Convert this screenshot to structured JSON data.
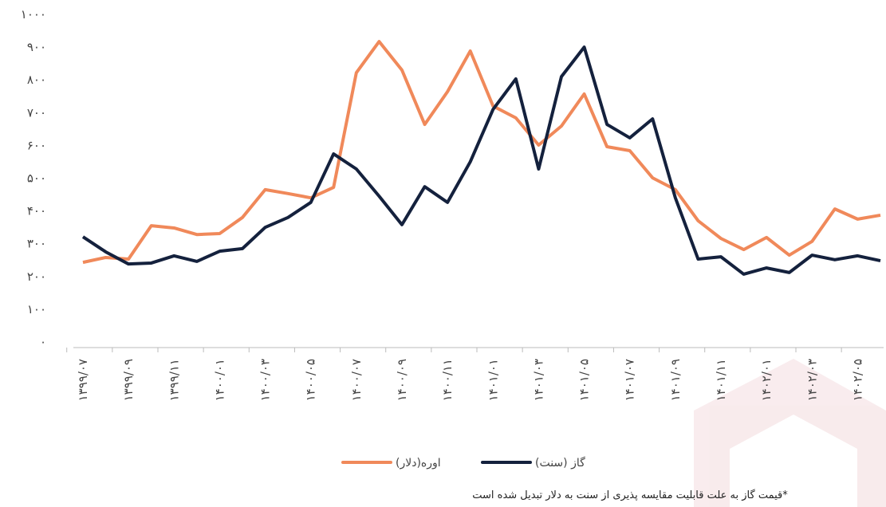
{
  "chart_data": {
    "type": "line",
    "categories": [
      "۱۳۹۹/۰۷",
      null,
      "۱۳۹۹/۰۹",
      null,
      "۱۳۹۹/۱۱",
      null,
      "۱۴۰۰/۰۱",
      null,
      "۱۴۰۰/۰۳",
      null,
      "۱۴۰۰/۰۵",
      null,
      "۱۴۰۰/۰۷",
      null,
      "۱۴۰۰/۰۹",
      null,
      "۱۴۰۰/۱۱",
      null,
      "۱۴۰۱/۰۱",
      null,
      "۱۴۰۱/۰۳",
      null,
      "۱۴۰۱/۰۵",
      null,
      "۱۴۰۱/۰۷",
      null,
      "۱۴۰۱/۰۹",
      null,
      "۱۴۰۱/۱۱",
      null,
      "۱۴۰۲/۰۱",
      null,
      "۱۴۰۲/۰۳",
      null,
      "۱۴۰۲/۰۵",
      null
    ],
    "series": [
      {
        "name": "اوره(دلار)",
        "color": "#f0895a",
        "values": [
          243,
          258,
          253,
          355,
          348,
          328,
          331,
          380,
          465,
          453,
          440,
          472,
          822,
          917,
          830,
          664,
          764,
          888,
          720,
          684,
          601,
          659,
          757,
          596,
          584,
          501,
          465,
          370,
          316,
          282,
          319,
          265,
          307,
          406,
          375,
          387
        ]
      },
      {
        "name": "گاز (سنت)",
        "color": "#14213d",
        "values": [
          321,
          275,
          238,
          241,
          263,
          246,
          277,
          285,
          350,
          380,
          426,
          574,
          528,
          445,
          358,
          474,
          426,
          550,
          710,
          803,
          528,
          810,
          900,
          664,
          623,
          681,
          440,
          253,
          260,
          207,
          226,
          212,
          265,
          251,
          263,
          248
        ]
      }
    ],
    "ylim": [
      0,
      1000
    ],
    "yticks": [
      {
        "value": 0,
        "label": "۰"
      },
      {
        "value": 100,
        "label": "۱۰۰"
      },
      {
        "value": 200,
        "label": "۲۰۰"
      },
      {
        "value": 300,
        "label": "۳۰۰"
      },
      {
        "value": 400,
        "label": "۴۰۰"
      },
      {
        "value": 500,
        "label": "۵۰۰"
      },
      {
        "value": 600,
        "label": "۶۰۰"
      },
      {
        "value": 700,
        "label": "۷۰۰"
      },
      {
        "value": 800,
        "label": "۸۰۰"
      },
      {
        "value": 900,
        "label": "۹۰۰"
      },
      {
        "value": 1000,
        "label": "۱۰۰۰"
      }
    ],
    "grid": false,
    "legend": "bottom",
    "note": "*قیمت گاز به علت قابلیت مقایسه پذیری از سنت به دلار تبدیل شده است"
  }
}
